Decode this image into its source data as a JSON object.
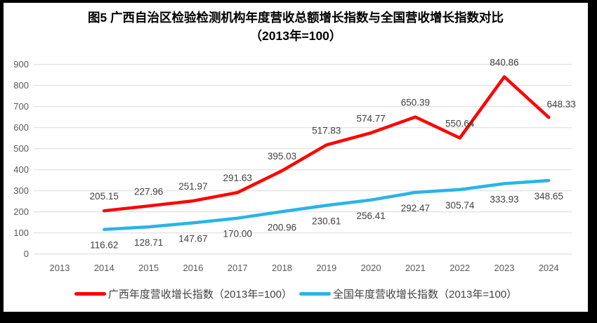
{
  "chart_data": {
    "type": "line",
    "title": "图5  广西自治区检验检测机构年度营收总额增长指数与全国营收增长指数对比（2013年=100）",
    "categories": [
      "2013",
      "2014",
      "2015",
      "2016",
      "2017",
      "2018",
      "2019",
      "2020",
      "2021",
      "2022",
      "2023",
      "2024"
    ],
    "series": [
      {
        "name": "广西年度营收增长指数（2013年=100）",
        "color": "#FE0000",
        "first_category": "2014",
        "values": [
          "205.15",
          "227.96",
          "251.97",
          "291.63",
          "395.03",
          "517.83",
          "574.77",
          "650.39",
          "550.64",
          "840.86",
          "648.33"
        ]
      },
      {
        "name": "全国年度营收增长指数（2013年=100）",
        "color": "#29B4E8",
        "first_category": "2014",
        "values": [
          "116.62",
          "128.71",
          "147.67",
          "170.00",
          "200.96",
          "230.61",
          "256.41",
          "292.47",
          "305.74",
          "333.93",
          "348.65"
        ]
      }
    ],
    "ylim": [
      0,
      900
    ],
    "yticks": [
      "0",
      "100",
      "200",
      "300",
      "400",
      "500",
      "600",
      "700",
      "800",
      "900"
    ],
    "grid": true,
    "gridline_color": "#D9D9D9",
    "axis_text_color": "#595959",
    "data_label_color": "#404040",
    "legend_position": "bottom"
  }
}
